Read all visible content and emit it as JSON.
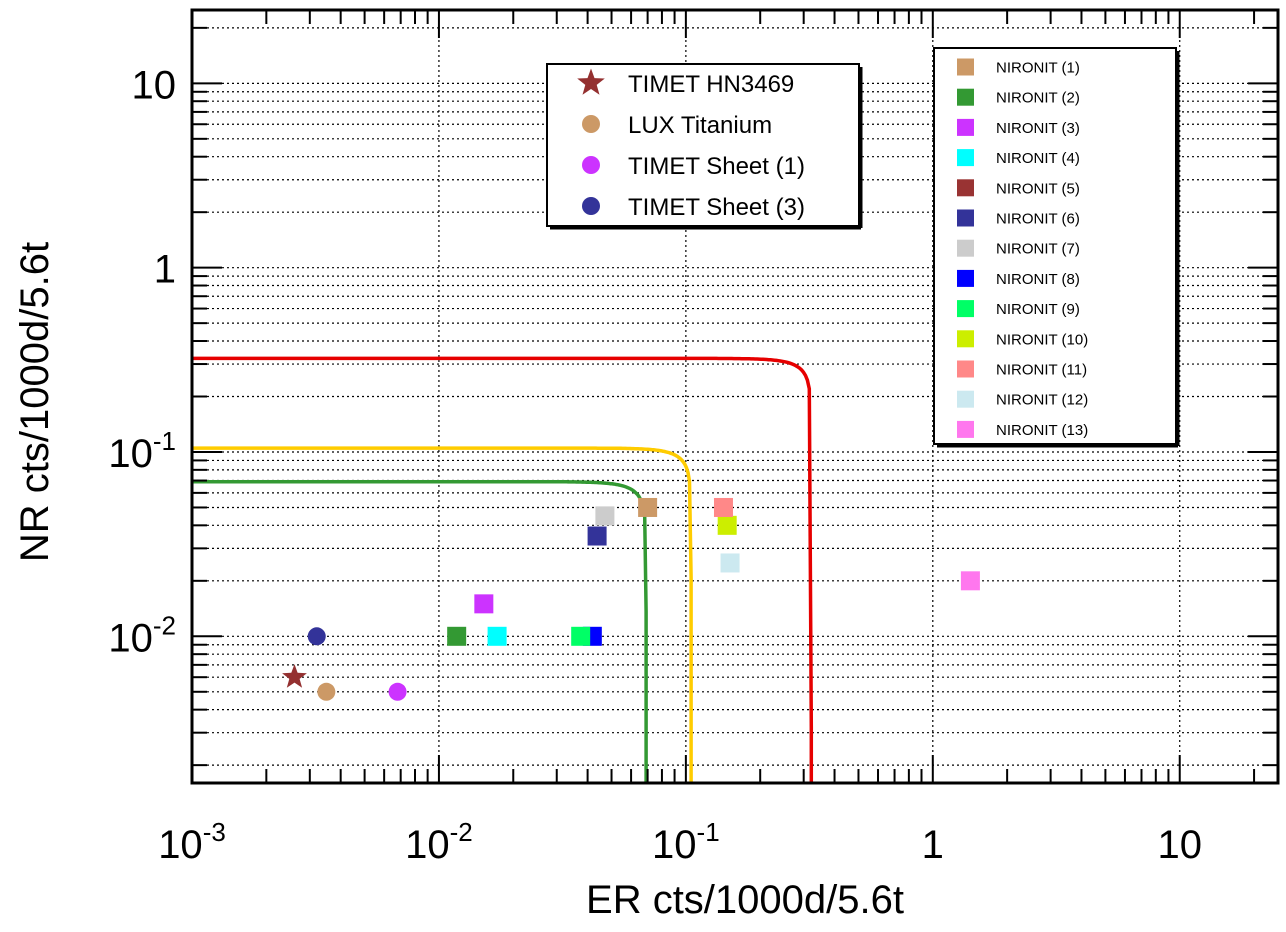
{
  "chart_data": {
    "type": "scatter",
    "xlabel": "ER cts/1000d/5.6t",
    "ylabel": "NR cts/1000d/5.6t",
    "xscale": "log",
    "yscale": "log",
    "xlim": [
      0.001,
      25
    ],
    "ylim": [
      0.0016,
      25
    ],
    "grid": true,
    "x_tick_labels": [
      {
        "value": 0.001,
        "base": "10",
        "exp": "-3"
      },
      {
        "value": 0.01,
        "base": "10",
        "exp": "-2"
      },
      {
        "value": 0.1,
        "base": "10",
        "exp": "-1"
      },
      {
        "value": 1,
        "base": "1",
        "exp": ""
      },
      {
        "value": 10,
        "base": "10",
        "exp": ""
      }
    ],
    "y_tick_labels": [
      {
        "value": 0.01,
        "base": "10",
        "exp": "-2"
      },
      {
        "value": 0.1,
        "base": "10",
        "exp": "-1"
      },
      {
        "value": 1,
        "base": "1",
        "exp": ""
      },
      {
        "value": 10,
        "base": "10",
        "exp": ""
      }
    ],
    "legend_main_placement": "top-center",
    "legend_side_placement": "top-right",
    "series": [
      {
        "name": "TIMET HN3469",
        "marker": "star",
        "color": "#943030",
        "points": [
          [
            0.0026,
            0.006
          ]
        ]
      },
      {
        "name": "LUX Titanium",
        "marker": "circle",
        "color": "#cc9966",
        "points": [
          [
            0.0035,
            0.005
          ]
        ]
      },
      {
        "name": "TIMET Sheet (1)",
        "marker": "circle",
        "color": "#cc33ff",
        "points": [
          [
            0.0068,
            0.005
          ]
        ]
      },
      {
        "name": "TIMET Sheet (3)",
        "marker": "circle",
        "color": "#333399",
        "points": [
          [
            0.0032,
            0.01
          ]
        ]
      },
      {
        "name": "NIRONIT (1)",
        "marker": "square",
        "color": "#cc9966",
        "points": [
          [
            0.07,
            0.05
          ]
        ]
      },
      {
        "name": "NIRONIT (2)",
        "marker": "square",
        "color": "#339933",
        "points": [
          [
            0.0118,
            0.01
          ]
        ]
      },
      {
        "name": "NIRONIT (3)",
        "marker": "square",
        "color": "#cc33ff",
        "points": [
          [
            0.0152,
            0.015
          ]
        ]
      },
      {
        "name": "NIRONIT (4)",
        "marker": "square",
        "color": "#00ffff",
        "points": [
          [
            0.0172,
            0.01
          ]
        ]
      },
      {
        "name": "NIRONIT (5)",
        "marker": "square",
        "color": "#993333",
        "points": []
      },
      {
        "name": "NIRONIT (6)",
        "marker": "square",
        "color": "#333399",
        "points": [
          [
            0.0437,
            0.035
          ]
        ]
      },
      {
        "name": "NIRONIT (7)",
        "marker": "square",
        "color": "#cccccc",
        "points": [
          [
            0.047,
            0.045
          ]
        ]
      },
      {
        "name": "NIRONIT (8)",
        "marker": "square",
        "color": "#0000ff",
        "points": [
          [
            0.0418,
            0.01
          ]
        ]
      },
      {
        "name": "NIRONIT (9)",
        "marker": "square",
        "color": "#00ff66",
        "points": [
          [
            0.0375,
            0.01
          ]
        ]
      },
      {
        "name": "NIRONIT (10)",
        "marker": "square",
        "color": "#ccee00",
        "points": [
          [
            0.147,
            0.04
          ]
        ]
      },
      {
        "name": "NIRONIT (11)",
        "marker": "square",
        "color": "#ff8888",
        "points": [
          [
            0.142,
            0.05
          ]
        ]
      },
      {
        "name": "NIRONIT (12)",
        "marker": "square",
        "color": "#cce9f0",
        "points": [
          [
            0.151,
            0.025
          ]
        ]
      },
      {
        "name": "NIRONIT (13)",
        "marker": "square",
        "color": "#ff77ee",
        "points": [
          [
            1.42,
            0.02
          ]
        ]
      }
    ],
    "curves": [
      {
        "color": "#e60000",
        "x_max": 0.322,
        "y_max": 0.322
      },
      {
        "color": "#ffcc00",
        "x_max": 0.105,
        "y_max": 0.105
      },
      {
        "color": "#339933",
        "x_max": 0.069,
        "y_max": 0.069
      }
    ],
    "legend_main": [
      {
        "label": "TIMET HN3469",
        "marker": "star",
        "color": "#943030"
      },
      {
        "label": "LUX Titanium",
        "marker": "circle",
        "color": "#cc9966"
      },
      {
        "label": "TIMET Sheet (1)",
        "marker": "circle",
        "color": "#cc33ff"
      },
      {
        "label": "TIMET Sheet (3)",
        "marker": "circle",
        "color": "#333399"
      }
    ],
    "legend_side": [
      {
        "label": "NIRONIT (1)",
        "color": "#cc9966"
      },
      {
        "label": "NIRONIT (2)",
        "color": "#339933"
      },
      {
        "label": "NIRONIT (3)",
        "color": "#cc33ff"
      },
      {
        "label": "NIRONIT (4)",
        "color": "#00ffff"
      },
      {
        "label": "NIRONIT (5)",
        "color": "#993333"
      },
      {
        "label": "NIRONIT (6)",
        "color": "#333399"
      },
      {
        "label": "NIRONIT (7)",
        "color": "#cccccc"
      },
      {
        "label": "NIRONIT (8)",
        "color": "#0000ff"
      },
      {
        "label": "NIRONIT (9)",
        "color": "#00ff66"
      },
      {
        "label": "NIRONIT (10)",
        "color": "#ccee00"
      },
      {
        "label": "NIRONIT (11)",
        "color": "#ff8888"
      },
      {
        "label": "NIRONIT (12)",
        "color": "#cce9f0"
      },
      {
        "label": "NIRONIT (13)",
        "color": "#ff77ee"
      }
    ]
  }
}
